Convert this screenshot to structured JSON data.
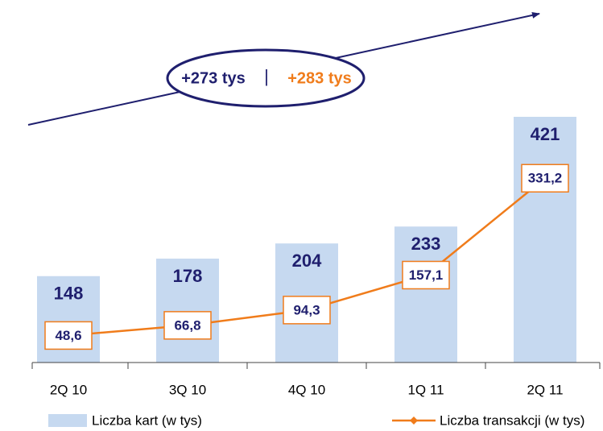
{
  "chart_data": {
    "type": "bar",
    "categories": [
      "2Q 10",
      "3Q 10",
      "4Q 10",
      "1Q 11",
      "2Q 11"
    ],
    "series": [
      {
        "name": "Liczba kart (w tys)",
        "type": "bar",
        "color": "#c6d9f0",
        "values": [
          148,
          178,
          204,
          233,
          421
        ]
      },
      {
        "name": "Liczba transakcji (w tys)",
        "type": "line",
        "axis": "y2",
        "color": "#f07c1b",
        "values": [
          48.6,
          66.8,
          94.3,
          157.1,
          331.2
        ],
        "value_labels": [
          "48,6",
          "66,8",
          "94,3",
          "157,1",
          "331,2"
        ]
      }
    ],
    "ylim": [
      0,
      450
    ],
    "y2lim": [
      0,
      472
    ],
    "annotations": [
      {
        "text": "+273 tys",
        "color": "#1f1f6e"
      },
      {
        "text": "|",
        "color": "#1f1f6e"
      },
      {
        "text": "+283 tys",
        "color": "#f07c1b"
      }
    ],
    "legend": "bottom"
  }
}
